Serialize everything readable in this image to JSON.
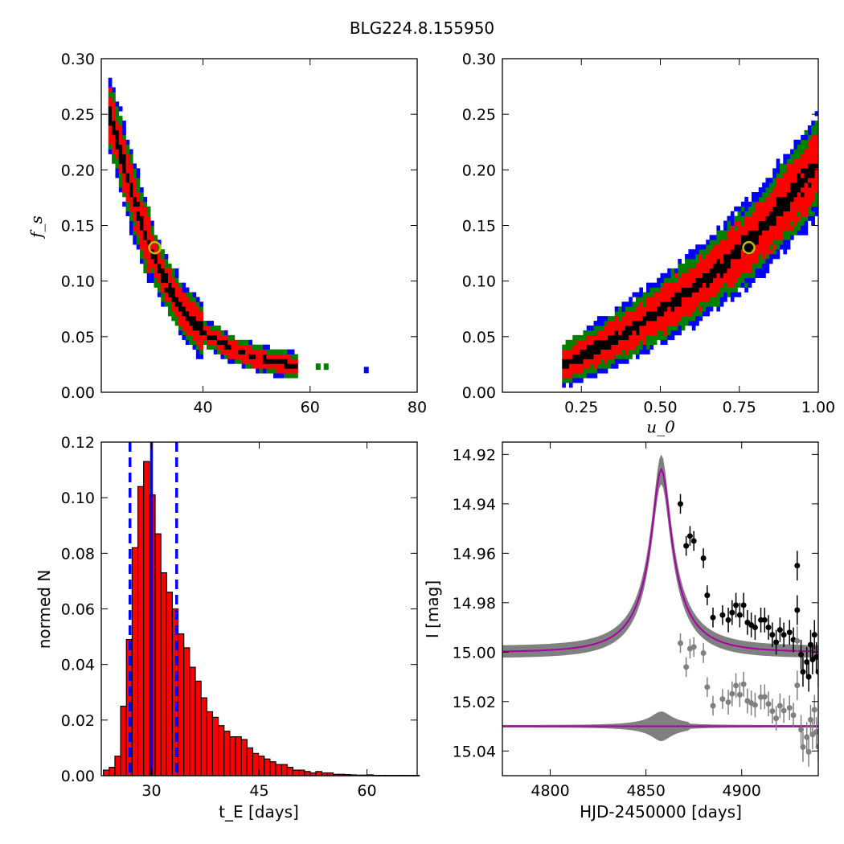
{
  "title": "BLG224.8.155950",
  "colors": {
    "blue": "#0000ff",
    "green": "#008000",
    "red": "#ff0000",
    "black": "#000000",
    "marker": "#bfbf00",
    "model": "#aa00aa",
    "band": "#808080",
    "residual": "#808080"
  },
  "chart_data": [
    {
      "type": "heatmap",
      "name": "fs vs tE posterior",
      "ylabel": "f_s",
      "xlim": [
        21,
        80
      ],
      "ylim": [
        0,
        0.3
      ],
      "xticks": [
        40,
        60,
        80
      ],
      "yticks": [
        0.0,
        0.05,
        0.1,
        0.15,
        0.2,
        0.25,
        0.3
      ],
      "ytick_labels": [
        "0.00",
        "0.05",
        "0.10",
        "0.15",
        "0.20",
        "0.25",
        "0.30"
      ],
      "levels": [
        "black",
        "red",
        "green",
        "blue"
      ],
      "ridge": [
        [
          22.5,
          0.25
        ],
        [
          25,
          0.21
        ],
        [
          27,
          0.175
        ],
        [
          29,
          0.145
        ],
        [
          31,
          0.12
        ],
        [
          33,
          0.1
        ],
        [
          36,
          0.075
        ],
        [
          40,
          0.055
        ],
        [
          45,
          0.04
        ],
        [
          50,
          0.031
        ],
        [
          55,
          0.026
        ],
        [
          58,
          0.024
        ]
      ],
      "best_fit": [
        31,
        0.13
      ],
      "outliers": [
        [
          70.5,
          0.02
        ],
        [
          61.5,
          0.023
        ],
        [
          63,
          0.023
        ]
      ]
    },
    {
      "type": "heatmap",
      "name": "fs vs u0 posterior",
      "xlabel": "u_0",
      "xlim": [
        0.0,
        1.0
      ],
      "ylim": [
        0,
        0.3
      ],
      "xticks": [
        0.25,
        0.5,
        0.75,
        1.0
      ],
      "xtick_labels": [
        "0.25",
        "0.50",
        "0.75",
        "1.00"
      ],
      "yticks": [
        0.0,
        0.05,
        0.1,
        0.15,
        0.2,
        0.25,
        0.3
      ],
      "ytick_labels": [
        "0.00",
        "0.05",
        "0.10",
        "0.15",
        "0.20",
        "0.25",
        "0.30"
      ],
      "levels": [
        "black",
        "red",
        "green",
        "blue"
      ],
      "ridge": [
        [
          0.19,
          0.024
        ],
        [
          0.3,
          0.04
        ],
        [
          0.4,
          0.055
        ],
        [
          0.5,
          0.073
        ],
        [
          0.6,
          0.092
        ],
        [
          0.7,
          0.115
        ],
        [
          0.8,
          0.14
        ],
        [
          0.9,
          0.172
        ],
        [
          1.0,
          0.205
        ]
      ],
      "best_fit": [
        0.78,
        0.13
      ]
    },
    {
      "type": "bar",
      "name": "tE histogram",
      "xlabel": "t_E [days]",
      "ylabel": "normed N",
      "xlim": [
        23,
        67
      ],
      "ylim": [
        0,
        0.12
      ],
      "xticks": [
        30,
        45,
        60
      ],
      "xtick_labels": [
        "30",
        "45",
        "60"
      ],
      "yticks": [
        0.0,
        0.02,
        0.04,
        0.06,
        0.08,
        0.1,
        0.12
      ],
      "ytick_labels": [
        "0.00",
        "0.02",
        "0.04",
        "0.06",
        "0.08",
        "0.10",
        "0.12"
      ],
      "bin_start": 23.3,
      "bin_width": 0.8,
      "values": [
        0.002,
        0.003,
        0.007,
        0.025,
        0.049,
        0.082,
        0.104,
        0.113,
        0.101,
        0.087,
        0.073,
        0.066,
        0.06,
        0.051,
        0.046,
        0.039,
        0.034,
        0.028,
        0.023,
        0.021,
        0.018,
        0.016,
        0.014,
        0.014,
        0.013,
        0.01,
        0.008,
        0.007,
        0.006,
        0.005,
        0.004,
        0.004,
        0.003,
        0.002,
        0.002,
        0.0015,
        0.001,
        0.0015,
        0.001,
        0.001,
        0.0005,
        0.0005,
        0.0004,
        0.0003,
        0.0002,
        0.0002,
        0.0003,
        0.0001,
        0.0001,
        0.0001,
        0.0001,
        0.0001,
        0.0001,
        0.0001,
        0.0001
      ],
      "median": 30.0,
      "lower": 27.0,
      "upper": 33.5
    },
    {
      "type": "scatter",
      "name": "light curve",
      "xlabel": "HJD-2450000 [days]",
      "ylabel": "I [mag]",
      "xlim": [
        4775,
        4940
      ],
      "ylim": [
        15.05,
        14.915
      ],
      "xticks": [
        4800,
        4850,
        4900
      ],
      "xtick_labels": [
        "4800",
        "4850",
        "4900"
      ],
      "yticks": [
        14.92,
        14.94,
        14.96,
        14.98,
        15.0,
        15.02,
        15.04
      ],
      "ytick_labels": [
        "14.92",
        "14.94",
        "14.96",
        "14.98",
        "15.00",
        "15.02",
        "15.04"
      ],
      "baseline": 15.0,
      "peak_mag": 14.926,
      "peak_time": 4858,
      "residual_offset": 15.03,
      "data": [
        [
          4868,
          14.94
        ],
        [
          4871,
          14.957
        ],
        [
          4873,
          14.953
        ],
        [
          4875,
          14.955
        ],
        [
          4880,
          14.962
        ],
        [
          4882,
          14.977
        ],
        [
          4885,
          14.986
        ],
        [
          4890,
          14.985
        ],
        [
          4893,
          14.987
        ],
        [
          4895,
          14.984
        ],
        [
          4897,
          14.981
        ],
        [
          4899,
          14.985
        ],
        [
          4901,
          14.981
        ],
        [
          4903,
          14.988
        ],
        [
          4905,
          14.989
        ],
        [
          4907,
          14.99
        ],
        [
          4910,
          14.987
        ],
        [
          4912,
          14.987
        ],
        [
          4914,
          14.99
        ],
        [
          4916,
          14.993
        ],
        [
          4918,
          14.996
        ],
        [
          4920,
          14.991
        ],
        [
          4922,
          14.993
        ],
        [
          4925,
          14.992
        ],
        [
          4927,
          14.995
        ],
        [
          4929,
          14.983
        ],
        [
          4929,
          14.965
        ],
        [
          4931,
          15.001
        ],
        [
          4932,
          15.008
        ],
        [
          4934,
          15.004
        ],
        [
          4935,
          15.01
        ],
        [
          4936,
          14.997
        ],
        [
          4937,
          15.003
        ],
        [
          4938,
          14.993
        ],
        [
          4939,
          15.002
        ],
        [
          4940,
          15.008
        ]
      ],
      "errors": [
        0.004,
        0.004,
        0.004,
        0.004,
        0.004,
        0.004,
        0.004,
        0.004,
        0.005,
        0.005,
        0.005,
        0.005,
        0.005,
        0.005,
        0.005,
        0.005,
        0.005,
        0.005,
        0.005,
        0.005,
        0.005,
        0.005,
        0.005,
        0.005,
        0.005,
        0.006,
        0.006,
        0.006,
        0.006,
        0.006,
        0.006,
        0.006,
        0.006,
        0.006,
        0.006,
        0.006
      ]
    }
  ]
}
